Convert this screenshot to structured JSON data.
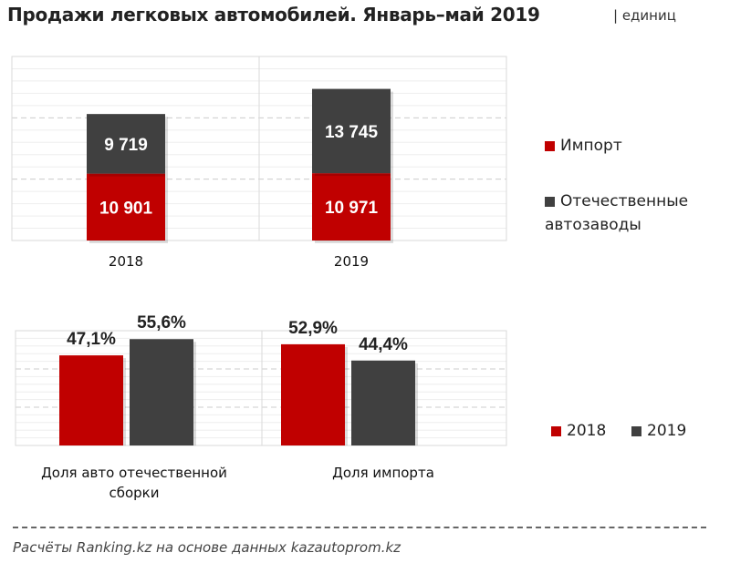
{
  "title": "Продажи легковых автомобилей. Январь–май 2019",
  "unit": "| единиц",
  "source": "Расчёты Ranking.kz  на основе данных  kazautoprom.kz",
  "colors": {
    "import": "#c00000",
    "domestic": "#404040",
    "y2018": "#c00000",
    "y2019": "#404040"
  },
  "chart_data": [
    {
      "type": "bar",
      "stacked": true,
      "categories": [
        "2018",
        "2019"
      ],
      "series": [
        {
          "name": "Импорт",
          "values": [
            10901,
            10971
          ],
          "labels": [
            "10 901",
            "10 971"
          ]
        },
        {
          "name": "Отечественные автозаводы",
          "values": [
            9719,
            13745
          ],
          "labels": [
            "9 719",
            "13 745"
          ]
        }
      ],
      "ylim": [
        0,
        30000
      ],
      "grid": true,
      "legend": "right"
    },
    {
      "type": "bar",
      "categories": [
        "Доля авто отечественной сборки",
        "Доля импорта"
      ],
      "series": [
        {
          "name": "2018",
          "values": [
            47.1,
            52.9
          ],
          "labels": [
            "47,1%",
            "52,9%"
          ]
        },
        {
          "name": "2019",
          "values": [
            55.6,
            44.4
          ],
          "labels": [
            "55,6%",
            "44,4%"
          ]
        }
      ],
      "ylim": [
        0,
        60
      ],
      "grid": true,
      "legend": "right"
    }
  ]
}
